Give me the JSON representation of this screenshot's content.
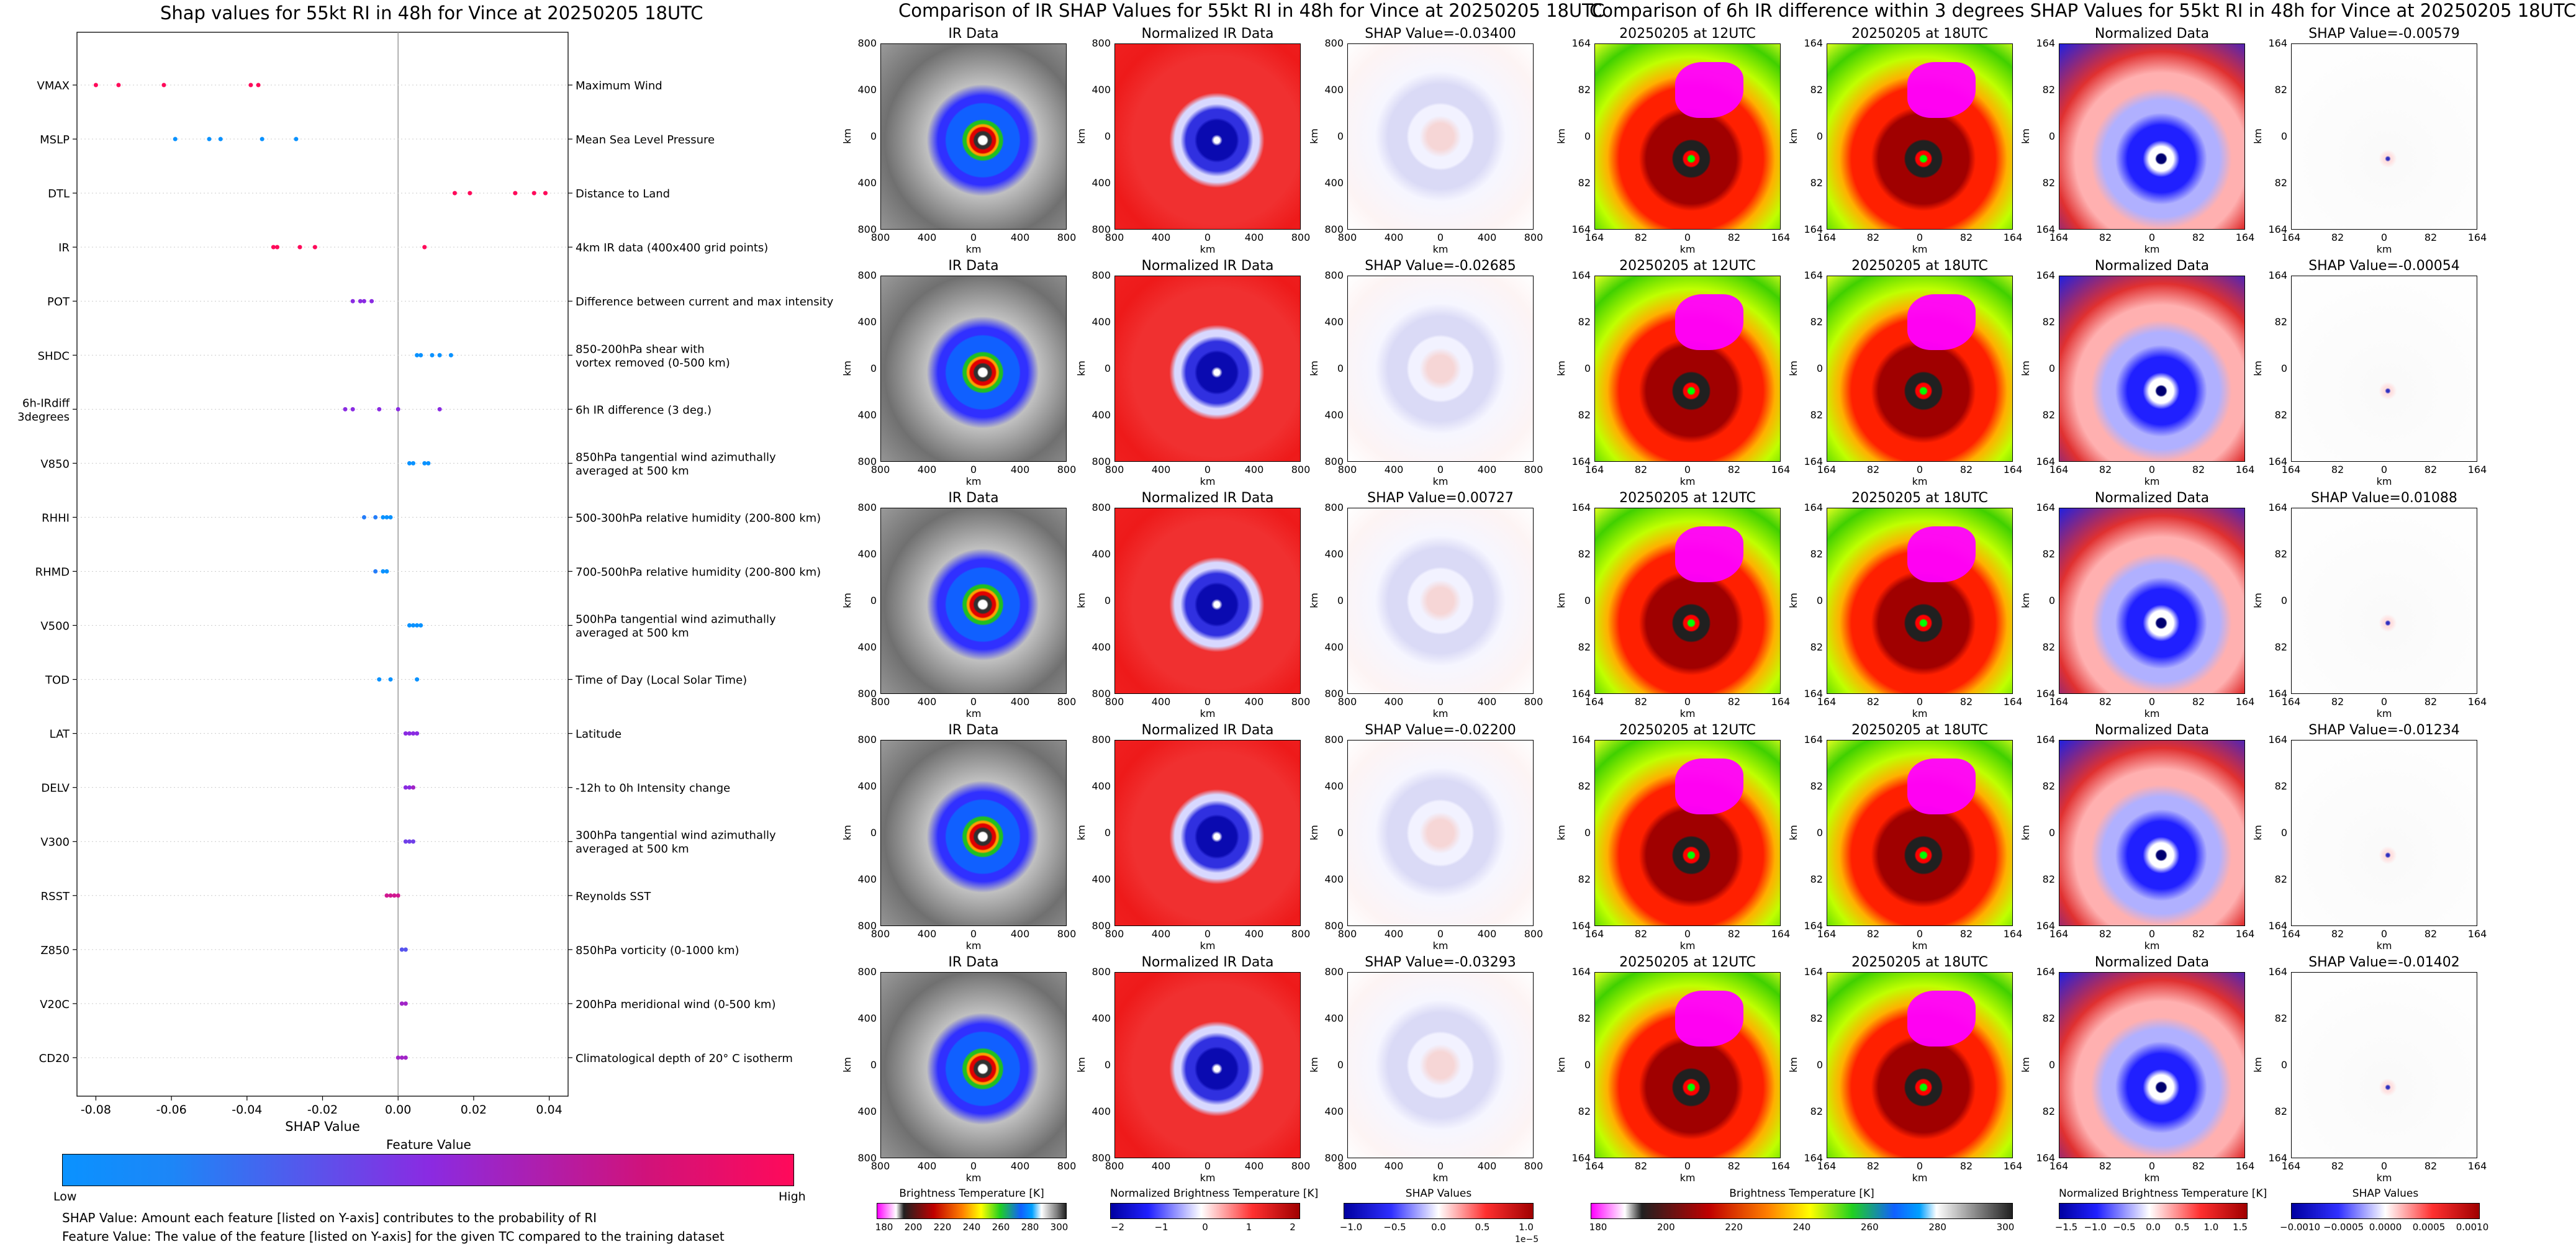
{
  "colors": {
    "low": "#0a92ff",
    "mid": "#8a2be2",
    "high": "#ff0a5a",
    "red_map": "#f01a1a",
    "blue_map": "#1010d0",
    "magenta": "#ff00ff"
  },
  "shap_panel": {
    "title": "Shap values for 55kt RI in 48h for Vince at 20250205 18UTC",
    "xlabel": "SHAP Value",
    "colorbar_title": "Feature Value",
    "colorbar_low": "Low",
    "colorbar_high": "High",
    "caption1": "SHAP Value: Amount each feature [listed on Y-axis] contributes to the probability of RI",
    "caption2": "Feature Value: The value of the feature [listed on Y-axis] for the given TC compared to the training dataset"
  },
  "chart_data": [
    {
      "type": "scatter",
      "title": "Shap values for 55kt RI in 48h for Vince at 20250205 18UTC",
      "xlabel": "SHAP Value",
      "xlim": [
        -0.085,
        0.045
      ],
      "xticks": [
        "-0.08",
        "-0.06",
        "-0.04",
        "-0.02",
        "0.00",
        "0.02",
        "0.04"
      ],
      "xtick_values": [
        -0.08,
        -0.06,
        -0.04,
        -0.02,
        0.0,
        0.02,
        0.04
      ],
      "grid": "horizontal dotted",
      "features": [
        {
          "code": "VMAX",
          "desc": "Maximum Wind",
          "points": [
            [
              -0.08,
              1
            ],
            [
              -0.074,
              1
            ],
            [
              -0.062,
              1
            ],
            [
              -0.039,
              1
            ],
            [
              -0.037,
              1
            ]
          ]
        },
        {
          "code": "MSLP",
          "desc": "Mean Sea Level Pressure",
          "points": [
            [
              -0.059,
              0
            ],
            [
              -0.05,
              0
            ],
            [
              -0.047,
              0
            ],
            [
              -0.036,
              0
            ],
            [
              -0.027,
              0
            ]
          ]
        },
        {
          "code": "DTL",
          "desc": "Distance to Land",
          "points": [
            [
              0.015,
              1
            ],
            [
              0.019,
              1
            ],
            [
              0.031,
              1
            ],
            [
              0.036,
              1
            ],
            [
              0.039,
              1
            ]
          ]
        },
        {
          "code": "IR",
          "desc": "4km IR data (400x400 grid points)",
          "points": [
            [
              -0.033,
              1
            ],
            [
              -0.032,
              1
            ],
            [
              -0.026,
              1
            ],
            [
              -0.022,
              1
            ],
            [
              0.007,
              1
            ]
          ]
        },
        {
          "code": "POT",
          "desc": "Difference between current and max intensity",
          "points": [
            [
              -0.012,
              0.5
            ],
            [
              -0.01,
              0.5
            ],
            [
              -0.009,
              0.5
            ],
            [
              -0.007,
              0.5
            ]
          ]
        },
        {
          "code": "SHDC",
          "desc": "850-200hPa shear with\nvortex removed (0-500 km)",
          "points": [
            [
              0.005,
              0
            ],
            [
              0.009,
              0
            ],
            [
              0.011,
              0
            ],
            [
              0.014,
              0
            ],
            [
              0.006,
              0
            ]
          ]
        },
        {
          "code": "6h-IRdiff\n3degrees",
          "desc": "6h IR difference (3 deg.)",
          "points": [
            [
              -0.014,
              0.5
            ],
            [
              -0.012,
              0.5
            ],
            [
              -0.005,
              0.5
            ],
            [
              0,
              0.5
            ],
            [
              0.011,
              0.5
            ]
          ]
        },
        {
          "code": "V850",
          "desc": "850hPa tangential wind azimuthally\naveraged at 500 km",
          "points": [
            [
              0.003,
              0
            ],
            [
              0.004,
              0
            ],
            [
              0.007,
              0
            ],
            [
              0.008,
              0
            ]
          ]
        },
        {
          "code": "RHHI",
          "desc": "500-300hPa relative humidity (200-800 km)",
          "points": [
            [
              -0.009,
              0.1
            ],
            [
              -0.006,
              0.1
            ],
            [
              -0.004,
              0
            ],
            [
              -0.003,
              0
            ],
            [
              -0.002,
              0
            ]
          ]
        },
        {
          "code": "RHMD",
          "desc": "700-500hPa relative humidity (200-800 km)",
          "points": [
            [
              -0.006,
              0.1
            ],
            [
              -0.004,
              0
            ],
            [
              -0.003,
              0
            ]
          ]
        },
        {
          "code": "V500",
          "desc": "500hPa tangential wind azimuthally\naveraged at 500 km",
          "points": [
            [
              0.003,
              0
            ],
            [
              0.004,
              0
            ],
            [
              0.005,
              0
            ],
            [
              0.006,
              0
            ]
          ]
        },
        {
          "code": "TOD",
          "desc": "Time of Day (Local Solar Time)",
          "points": [
            [
              -0.005,
              0
            ],
            [
              -0.002,
              0
            ],
            [
              0.005,
              0
            ]
          ]
        },
        {
          "code": "LAT",
          "desc": "Latitude",
          "points": [
            [
              0.002,
              0.5
            ],
            [
              0.003,
              0.5
            ],
            [
              0.004,
              0.5
            ],
            [
              0.005,
              0.5
            ]
          ]
        },
        {
          "code": "DELV",
          "desc": "-12h to 0h Intensity change",
          "points": [
            [
              0.002,
              0.5
            ],
            [
              0.003,
              0.5
            ],
            [
              0.004,
              0.6
            ]
          ]
        },
        {
          "code": "V300",
          "desc": "300hPa tangential wind azimuthally\naveraged at 500 km",
          "points": [
            [
              0.002,
              0.4
            ],
            [
              0.003,
              0.4
            ],
            [
              0.004,
              0.4
            ]
          ]
        },
        {
          "code": "RSST",
          "desc": "Reynolds SST",
          "points": [
            [
              -0.003,
              0.8
            ],
            [
              -0.002,
              0.8
            ],
            [
              -0.001,
              0.8
            ],
            [
              0,
              0.8
            ]
          ]
        },
        {
          "code": "Z850",
          "desc": "850hPa vorticity (0-1000 km)",
          "points": [
            [
              0.001,
              0.3
            ],
            [
              0.002,
              0.3
            ]
          ]
        },
        {
          "code": "V20C",
          "desc": "200hPa meridional wind (0-500 km)",
          "points": [
            [
              0.001,
              0.6
            ],
            [
              0.002,
              0.6
            ]
          ]
        },
        {
          "code": "CD20",
          "desc": "Climatological depth of 20° C isotherm",
          "points": [
            [
              0,
              0.6
            ],
            [
              0.001,
              0.6
            ],
            [
              0.002,
              0.6
            ]
          ]
        }
      ]
    },
    {
      "type": "heatmap",
      "title": "Comparison of IR SHAP Values for 55kt RI in 48h for Vince at 20250205 18UTC",
      "xticks": [
        "800",
        "400",
        "0",
        "400",
        "800"
      ],
      "yticks": [
        "800",
        "400",
        "0",
        "400",
        "800"
      ],
      "xlabel": "km",
      "ylabel": "km",
      "column_titles": [
        "IR Data",
        "Normalized IR Data"
      ],
      "shap_values": [
        "SHAP Value=-0.03400",
        "SHAP Value=-0.02685",
        "SHAP Value=0.00727",
        "SHAP Value=-0.02200",
        "SHAP Value=-0.03293"
      ],
      "colorbars": [
        {
          "label": "Brightness Temperature [K]",
          "ticks": [
            "180",
            "200",
            "220",
            "240",
            "260",
            "280",
            "300"
          ]
        },
        {
          "label": "Normalized Brightness Temperature [K]",
          "ticks": [
            "−2",
            "−1",
            "0",
            "1",
            "2"
          ]
        },
        {
          "label": "SHAP Values",
          "ticks": [
            "−1.0",
            "−0.5",
            "0.0",
            "0.5",
            "1.0"
          ],
          "exponent": "1e−5"
        }
      ]
    },
    {
      "type": "heatmap",
      "title": "Comparison of 6h IR difference within 3 degrees SHAP Values for 55kt RI in 48h for Vince at 20250205 18UTC",
      "xticks": [
        "164",
        "82",
        "0",
        "82",
        "164"
      ],
      "yticks": [
        "164",
        "82",
        "0",
        "82",
        "164"
      ],
      "xlabel": "km",
      "ylabel": "km",
      "column_titles": [
        "20250205 at 12UTC",
        "20250205 at 18UTC",
        "Normalized Data"
      ],
      "shap_values": [
        "SHAP Value=-0.00579",
        "SHAP Value=-0.00054",
        "SHAP Value=0.01088",
        "SHAP Value=-0.01234",
        "SHAP Value=-0.01402"
      ],
      "colorbars": [
        {
          "label": "Brightness Temperature [K]",
          "ticks": [
            "180",
            "200",
            "220",
            "240",
            "260",
            "280",
            "300"
          ]
        },
        {
          "label": "Normalized Brightness Temperature [K]",
          "ticks": [
            "−1.5",
            "−1.0",
            "−0.5",
            "0.0",
            "0.5",
            "1.0",
            "1.5"
          ]
        },
        {
          "label": "SHAP Values",
          "ticks": [
            "−0.0010",
            "−0.0005",
            "0.0000",
            "0.0005",
            "0.0010"
          ]
        }
      ]
    }
  ]
}
